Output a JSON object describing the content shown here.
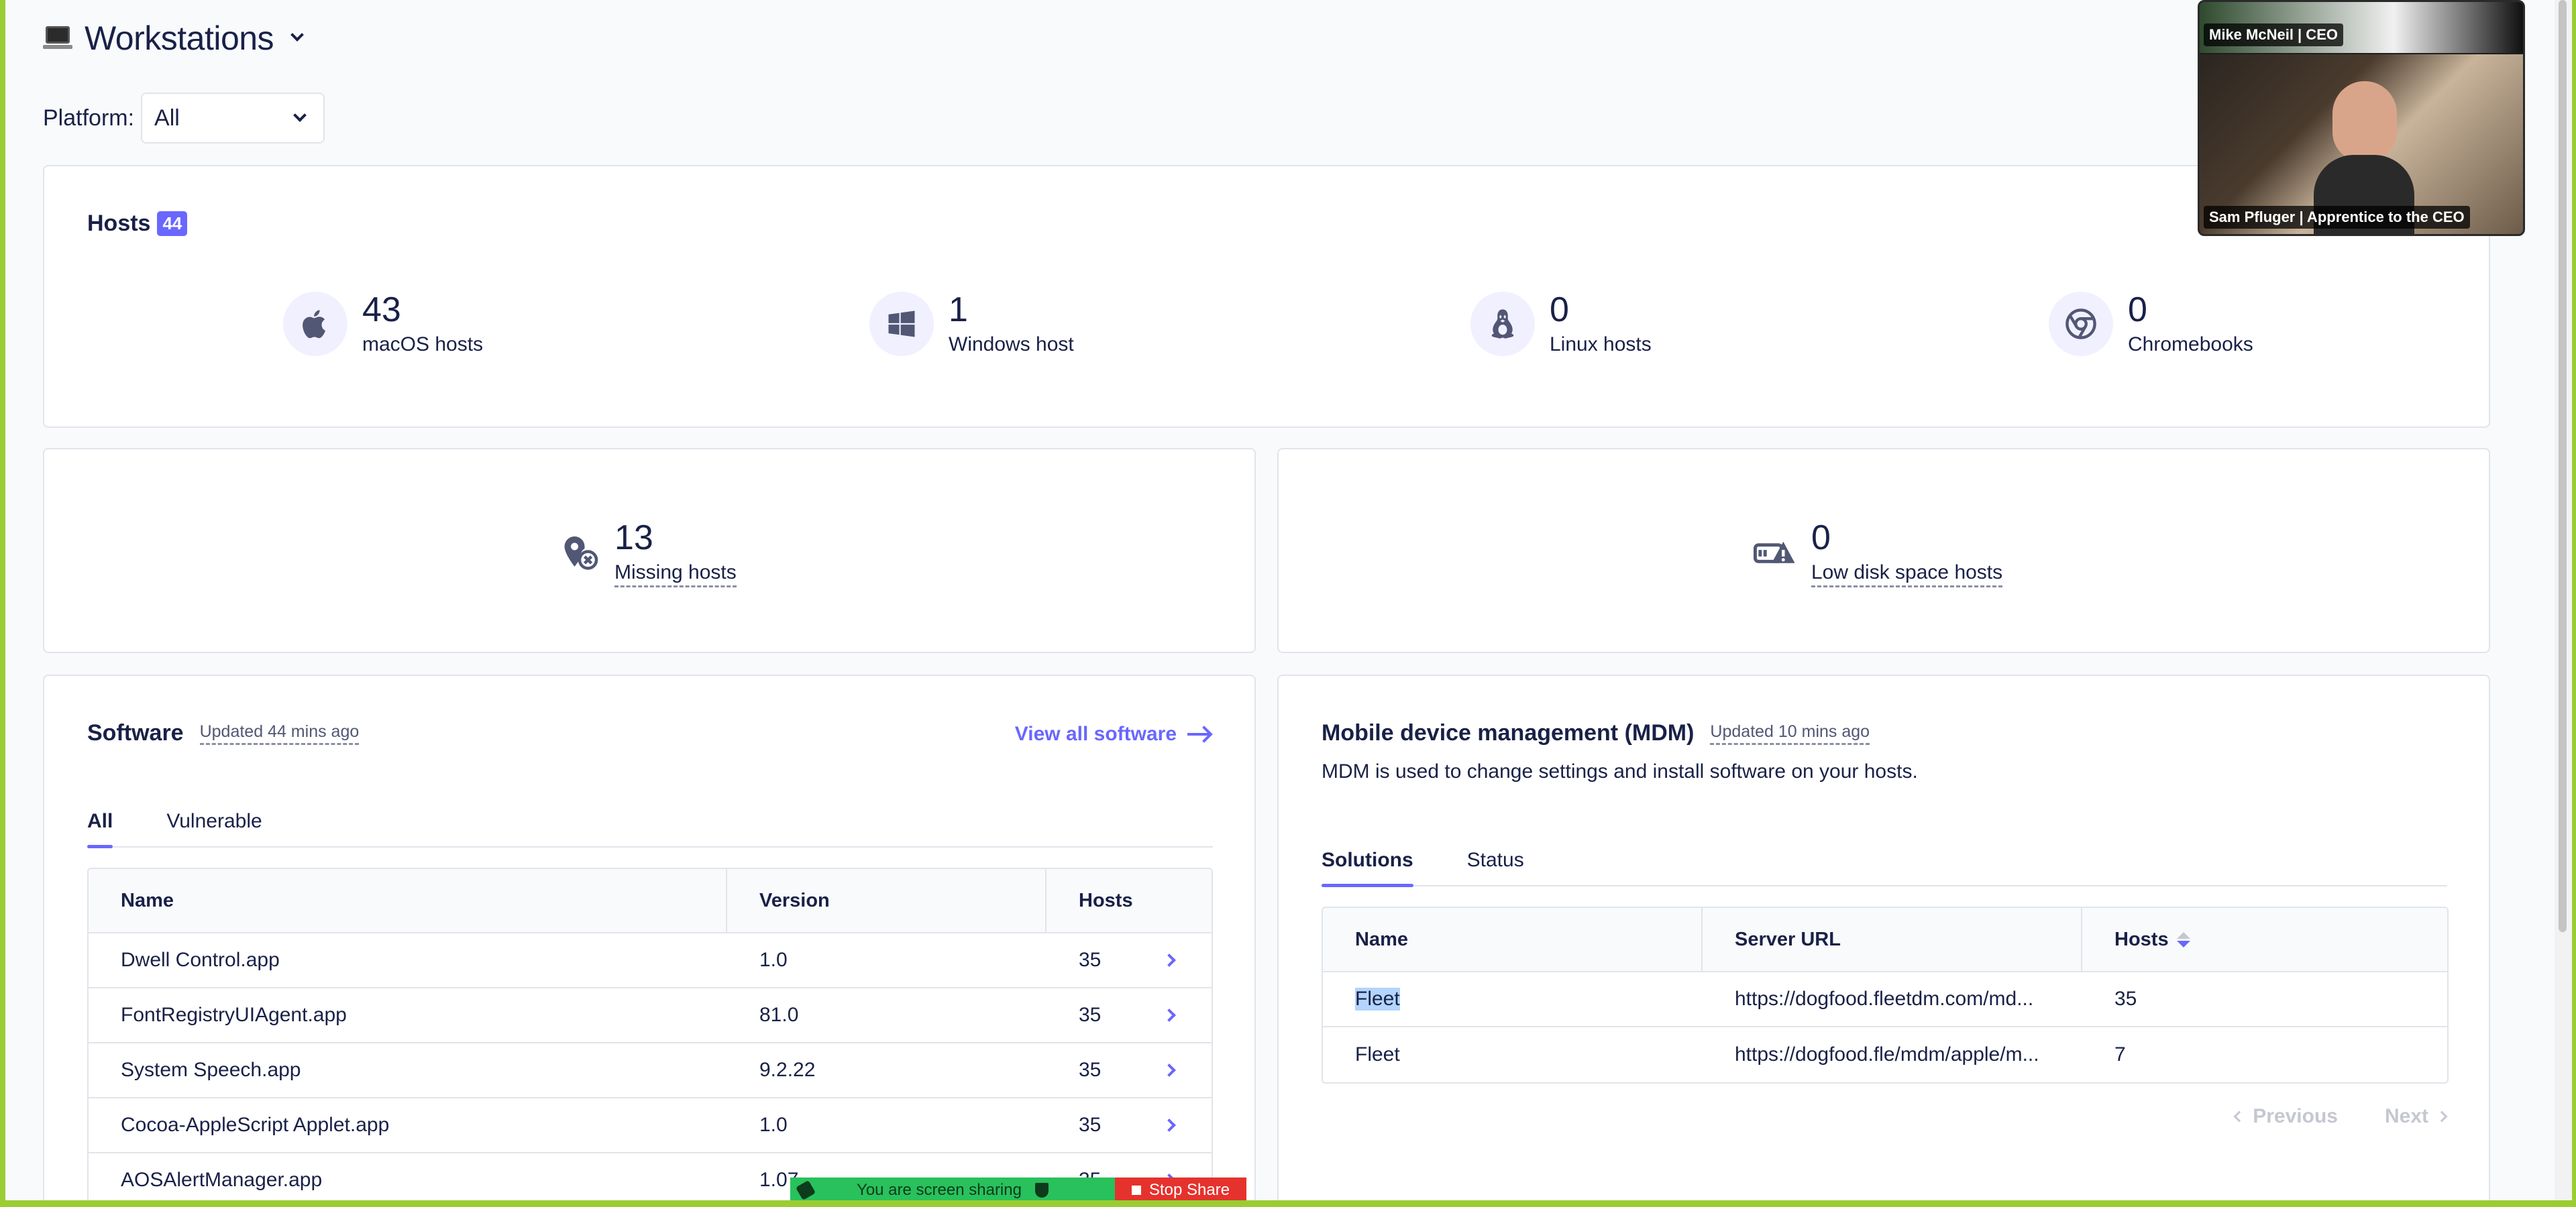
{
  "header": {
    "title": "Workstations"
  },
  "platform": {
    "label": "Platform:",
    "selected": "All"
  },
  "hosts": {
    "title": "Hosts",
    "count": "44",
    "stats": [
      {
        "icon": "apple-icon",
        "value": "43",
        "label": "macOS hosts"
      },
      {
        "icon": "windows-icon",
        "value": "1",
        "label": "Windows host"
      },
      {
        "icon": "linux-icon",
        "value": "0",
        "label": "Linux hosts"
      },
      {
        "icon": "chrome-icon",
        "value": "0",
        "label": "Chromebooks"
      }
    ]
  },
  "missing": {
    "icon": "missing-host-icon",
    "value": "13",
    "label": "Missing hosts"
  },
  "low_disk": {
    "icon": "low-disk-icon",
    "value": "0",
    "label": "Low disk space hosts"
  },
  "software": {
    "title": "Software",
    "updated": "Updated 44 mins ago",
    "view_all": "View all software",
    "tabs": [
      "All",
      "Vulnerable"
    ],
    "columns": [
      "Name",
      "Version",
      "Hosts"
    ],
    "rows": [
      {
        "name": "Dwell Control.app",
        "version": "1.0",
        "hosts": "35"
      },
      {
        "name": "FontRegistryUIAgent.app",
        "version": "81.0",
        "hosts": "35"
      },
      {
        "name": "System Speech.app",
        "version": "9.2.22",
        "hosts": "35"
      },
      {
        "name": "Cocoa-AppleScript Applet.app",
        "version": "1.0",
        "hosts": "35"
      },
      {
        "name": "AOSAlertManager.app",
        "version": "1.07",
        "hosts": "35"
      }
    ]
  },
  "mdm": {
    "title": "Mobile device management (MDM)",
    "updated": "Updated 10 mins ago",
    "description": "MDM is used to change settings and install software on your hosts.",
    "tabs": [
      "Solutions",
      "Status"
    ],
    "columns": [
      "Name",
      "Server URL",
      "Hosts"
    ],
    "rows": [
      {
        "name": "Fleet",
        "url": "https://dogfood.fleetdm.com/md...",
        "hosts": "35"
      },
      {
        "name": "Fleet",
        "url": "https://dogfood.fle/mdm/apple/m...",
        "hosts": "7"
      }
    ],
    "pagination": {
      "previous": "Previous",
      "next": "Next"
    }
  },
  "video": {
    "participants": [
      {
        "name": "Mike McNeil | CEO"
      },
      {
        "name": "Sam Pfluger | Apprentice to the CEO"
      }
    ]
  },
  "share_bar": {
    "status": "You are screen sharing",
    "stop": "Stop Share"
  },
  "colors": {
    "accent": "#6a67fe",
    "text": "#192147",
    "frame": "#9acd32",
    "share_green": "#29c15c",
    "stop_red": "#e5322d"
  }
}
